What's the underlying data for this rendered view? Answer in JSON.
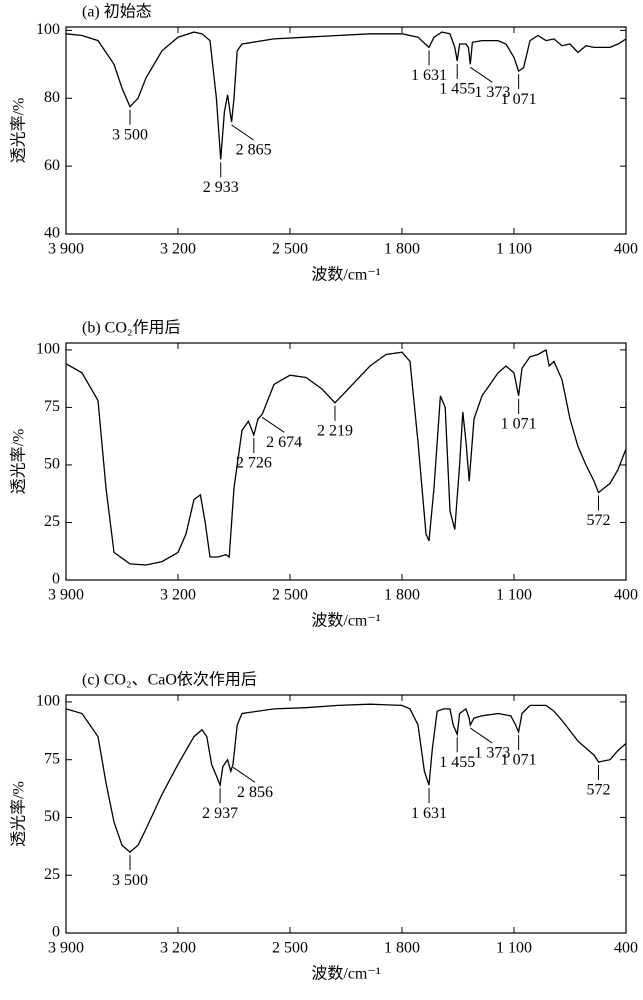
{
  "chart_data": [
    {
      "type": "line",
      "title": "(a) 初始态",
      "xlabel": "波数/cm⁻¹",
      "ylabel": "透光率/%",
      "x": [
        3900,
        3800,
        3700,
        3600,
        3550,
        3500,
        3450,
        3400,
        3300,
        3200,
        3100,
        3050,
        3000,
        2960,
        2933,
        2910,
        2890,
        2875,
        2865,
        2850,
        2830,
        2800,
        2600,
        2400,
        2200,
        2000,
        1800,
        1700,
        1631,
        1600,
        1550,
        1500,
        1470,
        1455,
        1440,
        1400,
        1385,
        1373,
        1360,
        1300,
        1200,
        1150,
        1100,
        1071,
        1040,
        1000,
        950,
        900,
        850,
        800,
        750,
        700,
        650,
        600,
        500,
        450,
        400
      ],
      "values": [
        99,
        98.5,
        97,
        90,
        83,
        77.5,
        80,
        86,
        94,
        98,
        99.5,
        99,
        97,
        80,
        62,
        76,
        81,
        76,
        73,
        80,
        94,
        96,
        97.5,
        98,
        98.5,
        99,
        99,
        98,
        95,
        98,
        99.5,
        99,
        95,
        91,
        96,
        96,
        95,
        90,
        96.5,
        97,
        97,
        96,
        92,
        88,
        89,
        97,
        98.5,
        97,
        97.5,
        95.5,
        96,
        93.5,
        95.5,
        95,
        95,
        96,
        97.5
      ],
      "xlim": [
        3900,
        400
      ],
      "ylim": [
        40,
        101
      ],
      "xticks": [
        {
          "value": 3900,
          "label": "3 900"
        },
        {
          "value": 3200,
          "label": "3 200"
        },
        {
          "value": 2500,
          "label": "2 500"
        },
        {
          "value": 1800,
          "label": "1 800"
        },
        {
          "value": 1100,
          "label": "1 100"
        },
        400
      ],
      "yticks": [
        40,
        60,
        80,
        100
      ],
      "annotations": [
        {
          "text": "3 500",
          "x": 3500,
          "y": 77.5
        },
        {
          "text": "2 933",
          "x": 2933,
          "y": 62
        },
        {
          "text": "2 865",
          "x": 2865,
          "y": 73
        },
        {
          "text": "1 631",
          "x": 1631,
          "y": 95
        },
        {
          "text": "1 455",
          "x": 1455,
          "y": 91
        },
        {
          "text": "1 373",
          "x": 1373,
          "y": 90
        },
        {
          "text": "1 071",
          "x": 1071,
          "y": 88
        }
      ]
    },
    {
      "type": "line",
      "title": "(b) CO₂作用后",
      "xlabel": "波数/cm⁻¹",
      "ylabel": "透光率/%",
      "x": [
        3900,
        3800,
        3700,
        3650,
        3600,
        3500,
        3400,
        3300,
        3200,
        3150,
        3100,
        3060,
        3030,
        3000,
        2950,
        2900,
        2880,
        2850,
        2800,
        2760,
        2726,
        2700,
        2674,
        2600,
        2500,
        2400,
        2300,
        2219,
        2150,
        2000,
        1900,
        1800,
        1750,
        1700,
        1650,
        1631,
        1600,
        1560,
        1530,
        1500,
        1470,
        1440,
        1420,
        1400,
        1380,
        1350,
        1300,
        1200,
        1150,
        1100,
        1071,
        1050,
        1000,
        950,
        900,
        880,
        850,
        800,
        750,
        700,
        650,
        600,
        572,
        500,
        450,
        400
      ],
      "values": [
        94,
        90,
        78,
        40,
        12,
        7,
        6.5,
        8,
        12,
        20,
        35,
        37,
        25,
        10,
        10,
        11,
        10,
        40,
        65,
        69,
        63,
        70,
        72,
        85,
        89,
        88,
        83,
        77,
        82,
        93,
        98,
        99,
        95,
        60,
        20,
        17,
        40,
        80,
        75,
        30,
        22,
        50,
        73,
        60,
        43,
        70,
        80,
        90,
        93,
        90,
        80,
        92,
        97,
        98,
        100,
        93,
        95,
        87,
        70,
        58,
        50,
        43,
        38,
        42,
        48,
        57
      ],
      "xlim": [
        3900,
        400
      ],
      "ylim": [
        0,
        103
      ],
      "xticks": [
        {
          "value": 3900,
          "label": "3 900"
        },
        {
          "value": 3200,
          "label": "3 200"
        },
        {
          "value": 2500,
          "label": "2 500"
        },
        {
          "value": 1800,
          "label": "1 800"
        },
        {
          "value": 1100,
          "label": "1 100"
        },
        400
      ],
      "yticks": [
        0,
        25,
        50,
        75,
        100
      ],
      "annotations": [
        {
          "text": "2 726",
          "x": 2726,
          "y": 63
        },
        {
          "text": "2 674",
          "x": 2674,
          "y": 72
        },
        {
          "text": "2 219",
          "x": 2219,
          "y": 77
        },
        {
          "text": "1 071",
          "x": 1071,
          "y": 80
        },
        {
          "text": "572",
          "x": 572,
          "y": 38
        }
      ]
    },
    {
      "type": "line",
      "title": "(c) CO₂、CaO依次作用后",
      "xlabel": "波数/cm⁻¹",
      "ylabel": "透光率/%",
      "x": [
        3900,
        3800,
        3700,
        3650,
        3600,
        3550,
        3500,
        3450,
        3400,
        3300,
        3200,
        3100,
        3050,
        3020,
        2990,
        2960,
        2937,
        2920,
        2890,
        2870,
        2856,
        2830,
        2800,
        2600,
        2400,
        2200,
        2000,
        1800,
        1750,
        1700,
        1660,
        1631,
        1610,
        1580,
        1540,
        1500,
        1480,
        1455,
        1440,
        1400,
        1380,
        1373,
        1350,
        1300,
        1200,
        1120,
        1090,
        1071,
        1050,
        1000,
        900,
        850,
        800,
        700,
        600,
        572,
        500,
        450,
        400
      ],
      "values": [
        97,
        95,
        85,
        65,
        48,
        38,
        35,
        38,
        45,
        60,
        73,
        85,
        88,
        85,
        73,
        68,
        64,
        72,
        75,
        70,
        73,
        90,
        95,
        97,
        97.5,
        98.5,
        99,
        98.5,
        97,
        90,
        70,
        64,
        80,
        96,
        97,
        97,
        90,
        86,
        95,
        97,
        93,
        90,
        93,
        94,
        95,
        94,
        90,
        87,
        95,
        98.5,
        98.5,
        96,
        92,
        83,
        77,
        74,
        75,
        79,
        82
      ],
      "xlim": [
        3900,
        400
      ],
      "ylim": [
        0,
        103
      ],
      "xticks": [
        {
          "value": 3900,
          "label": "3 900"
        },
        {
          "value": 3200,
          "label": "3 200"
        },
        {
          "value": 2500,
          "label": "2 500"
        },
        {
          "value": 1800,
          "label": "1 800"
        },
        {
          "value": 1100,
          "label": "1 100"
        },
        400
      ],
      "yticks": [
        0,
        25,
        50,
        75,
        100
      ],
      "annotations": [
        {
          "text": "3 500",
          "x": 3500,
          "y": 35
        },
        {
          "text": "2 937",
          "x": 2937,
          "y": 64
        },
        {
          "text": "2 856",
          "x": 2856,
          "y": 73
        },
        {
          "text": "1 631",
          "x": 1631,
          "y": 64
        },
        {
          "text": "1 455",
          "x": 1455,
          "y": 86
        },
        {
          "text": "1 373",
          "x": 1373,
          "y": 90
        },
        {
          "text": "1 071",
          "x": 1071,
          "y": 87
        },
        {
          "text": "572",
          "x": 572,
          "y": 74
        }
      ]
    }
  ]
}
